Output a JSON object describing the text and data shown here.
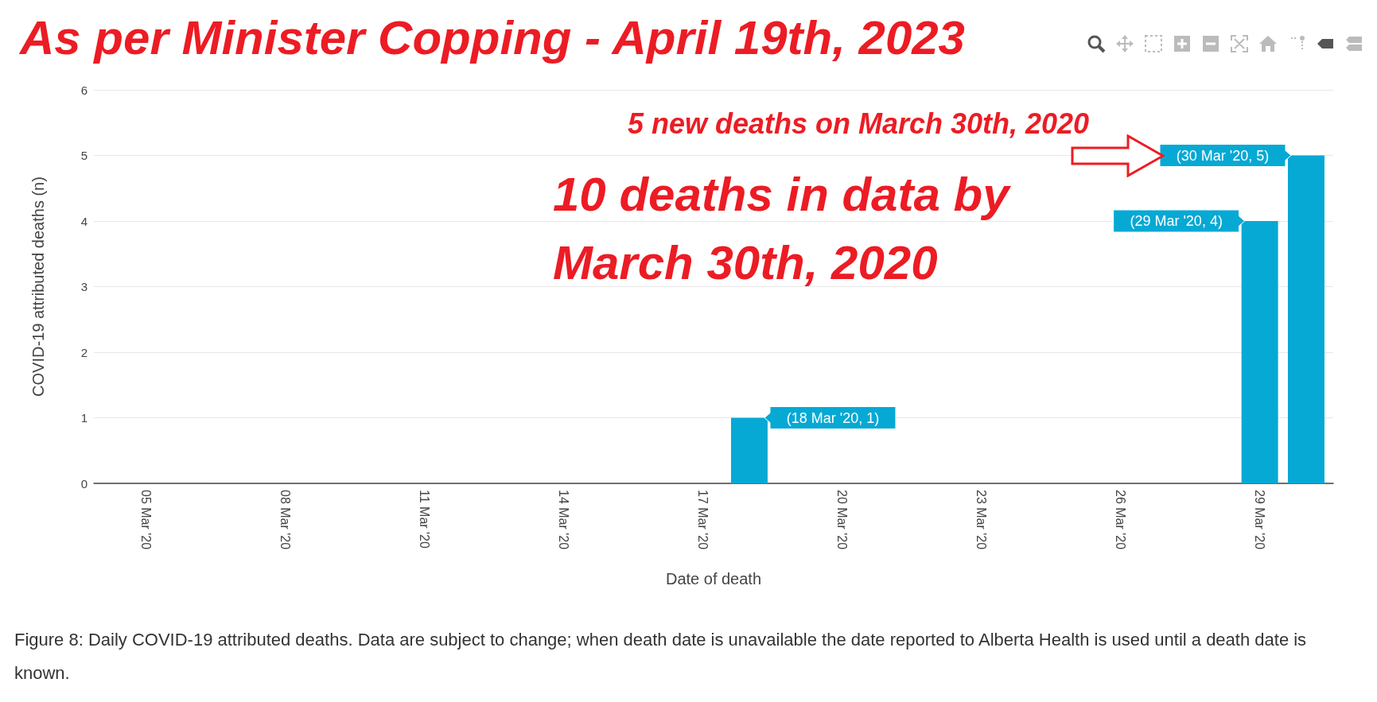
{
  "chart_data": {
    "type": "bar",
    "title": "As per Minister Copping - April 19th, 2023",
    "xlabel": "Date of death",
    "ylabel": "COVID-19 attributed deaths (n)",
    "x": [
      "2020-03-18",
      "2020-03-29",
      "2020-03-30"
    ],
    "values": [
      1,
      4,
      5
    ],
    "color": "#06a9d4",
    "xlim": [
      "2020-03-03T21:00",
      "2020-03-30T14:00"
    ],
    "xticks": [
      {
        "value": "2020-03-05",
        "label": "05 Mar '20"
      },
      {
        "value": "2020-03-08",
        "label": "08 Mar '20"
      },
      {
        "value": "2020-03-11",
        "label": "11 Mar '20"
      },
      {
        "value": "2020-03-14",
        "label": "14 Mar '20"
      },
      {
        "value": "2020-03-17",
        "label": "17 Mar '20"
      },
      {
        "value": "2020-03-20",
        "label": "20 Mar '20"
      },
      {
        "value": "2020-03-23",
        "label": "23 Mar '20"
      },
      {
        "value": "2020-03-26",
        "label": "26 Mar '20"
      },
      {
        "value": "2020-03-29",
        "label": "29 Mar '20"
      }
    ],
    "ylim": [
      0,
      6
    ],
    "yticks": [
      0,
      1,
      2,
      3,
      4,
      5,
      6
    ],
    "grid": "y",
    "annotations": [
      "5 new deaths on March 30th, 2020",
      "10 deaths in data by\nMarch 30th, 2020",
      {
        "text": "(18 Mar '20, 1)",
        "x": "2020-03-18",
        "y": 1
      },
      {
        "text": "(29 Mar '20, 4)",
        "x": "2020-03-29",
        "y": 4
      },
      {
        "text": "(30 Mar '20, 5)",
        "x": "2020-03-30",
        "y": 5
      },
      "Figure 8: Daily COVID-19 attributed deaths. Data are subject to change; when death date is unavailable the date reported to Alberta Health is used until a death date is known."
    ]
  }
}
